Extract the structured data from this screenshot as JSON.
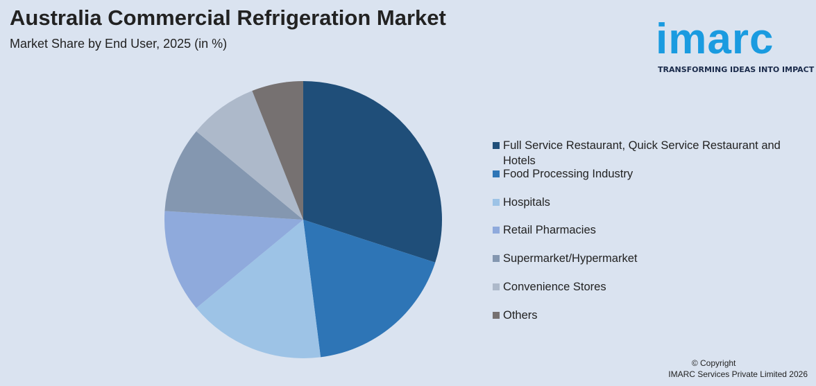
{
  "chart_data": {
    "type": "pie",
    "title": "Australia Commercial Refrigeration Market",
    "subtitle": "Market Share by End User, 2025 (in %)",
    "categories": [
      "Full Service Restaurant, Quick Service Restaurant and Hotels",
      "Food Processing Industry",
      "Hospitals",
      "Retail Pharmacies",
      "Supermarket/Hypermarket",
      "Convenience Stores",
      "Others"
    ],
    "values": [
      30,
      18,
      16,
      12,
      10,
      8,
      6
    ],
    "colors": [
      "#1f4e79",
      "#2e75b6",
      "#9dc3e6",
      "#8faadc",
      "#8497b0",
      "#adb9ca",
      "#767171"
    ],
    "legend": "right"
  },
  "logo": {
    "text": "imarc",
    "tagline": "TRANSFORMING IDEAS INTO IMPACT"
  },
  "footer": {
    "copyright": "© Copyright",
    "company": "IMARC Services Private Limited 2026"
  }
}
